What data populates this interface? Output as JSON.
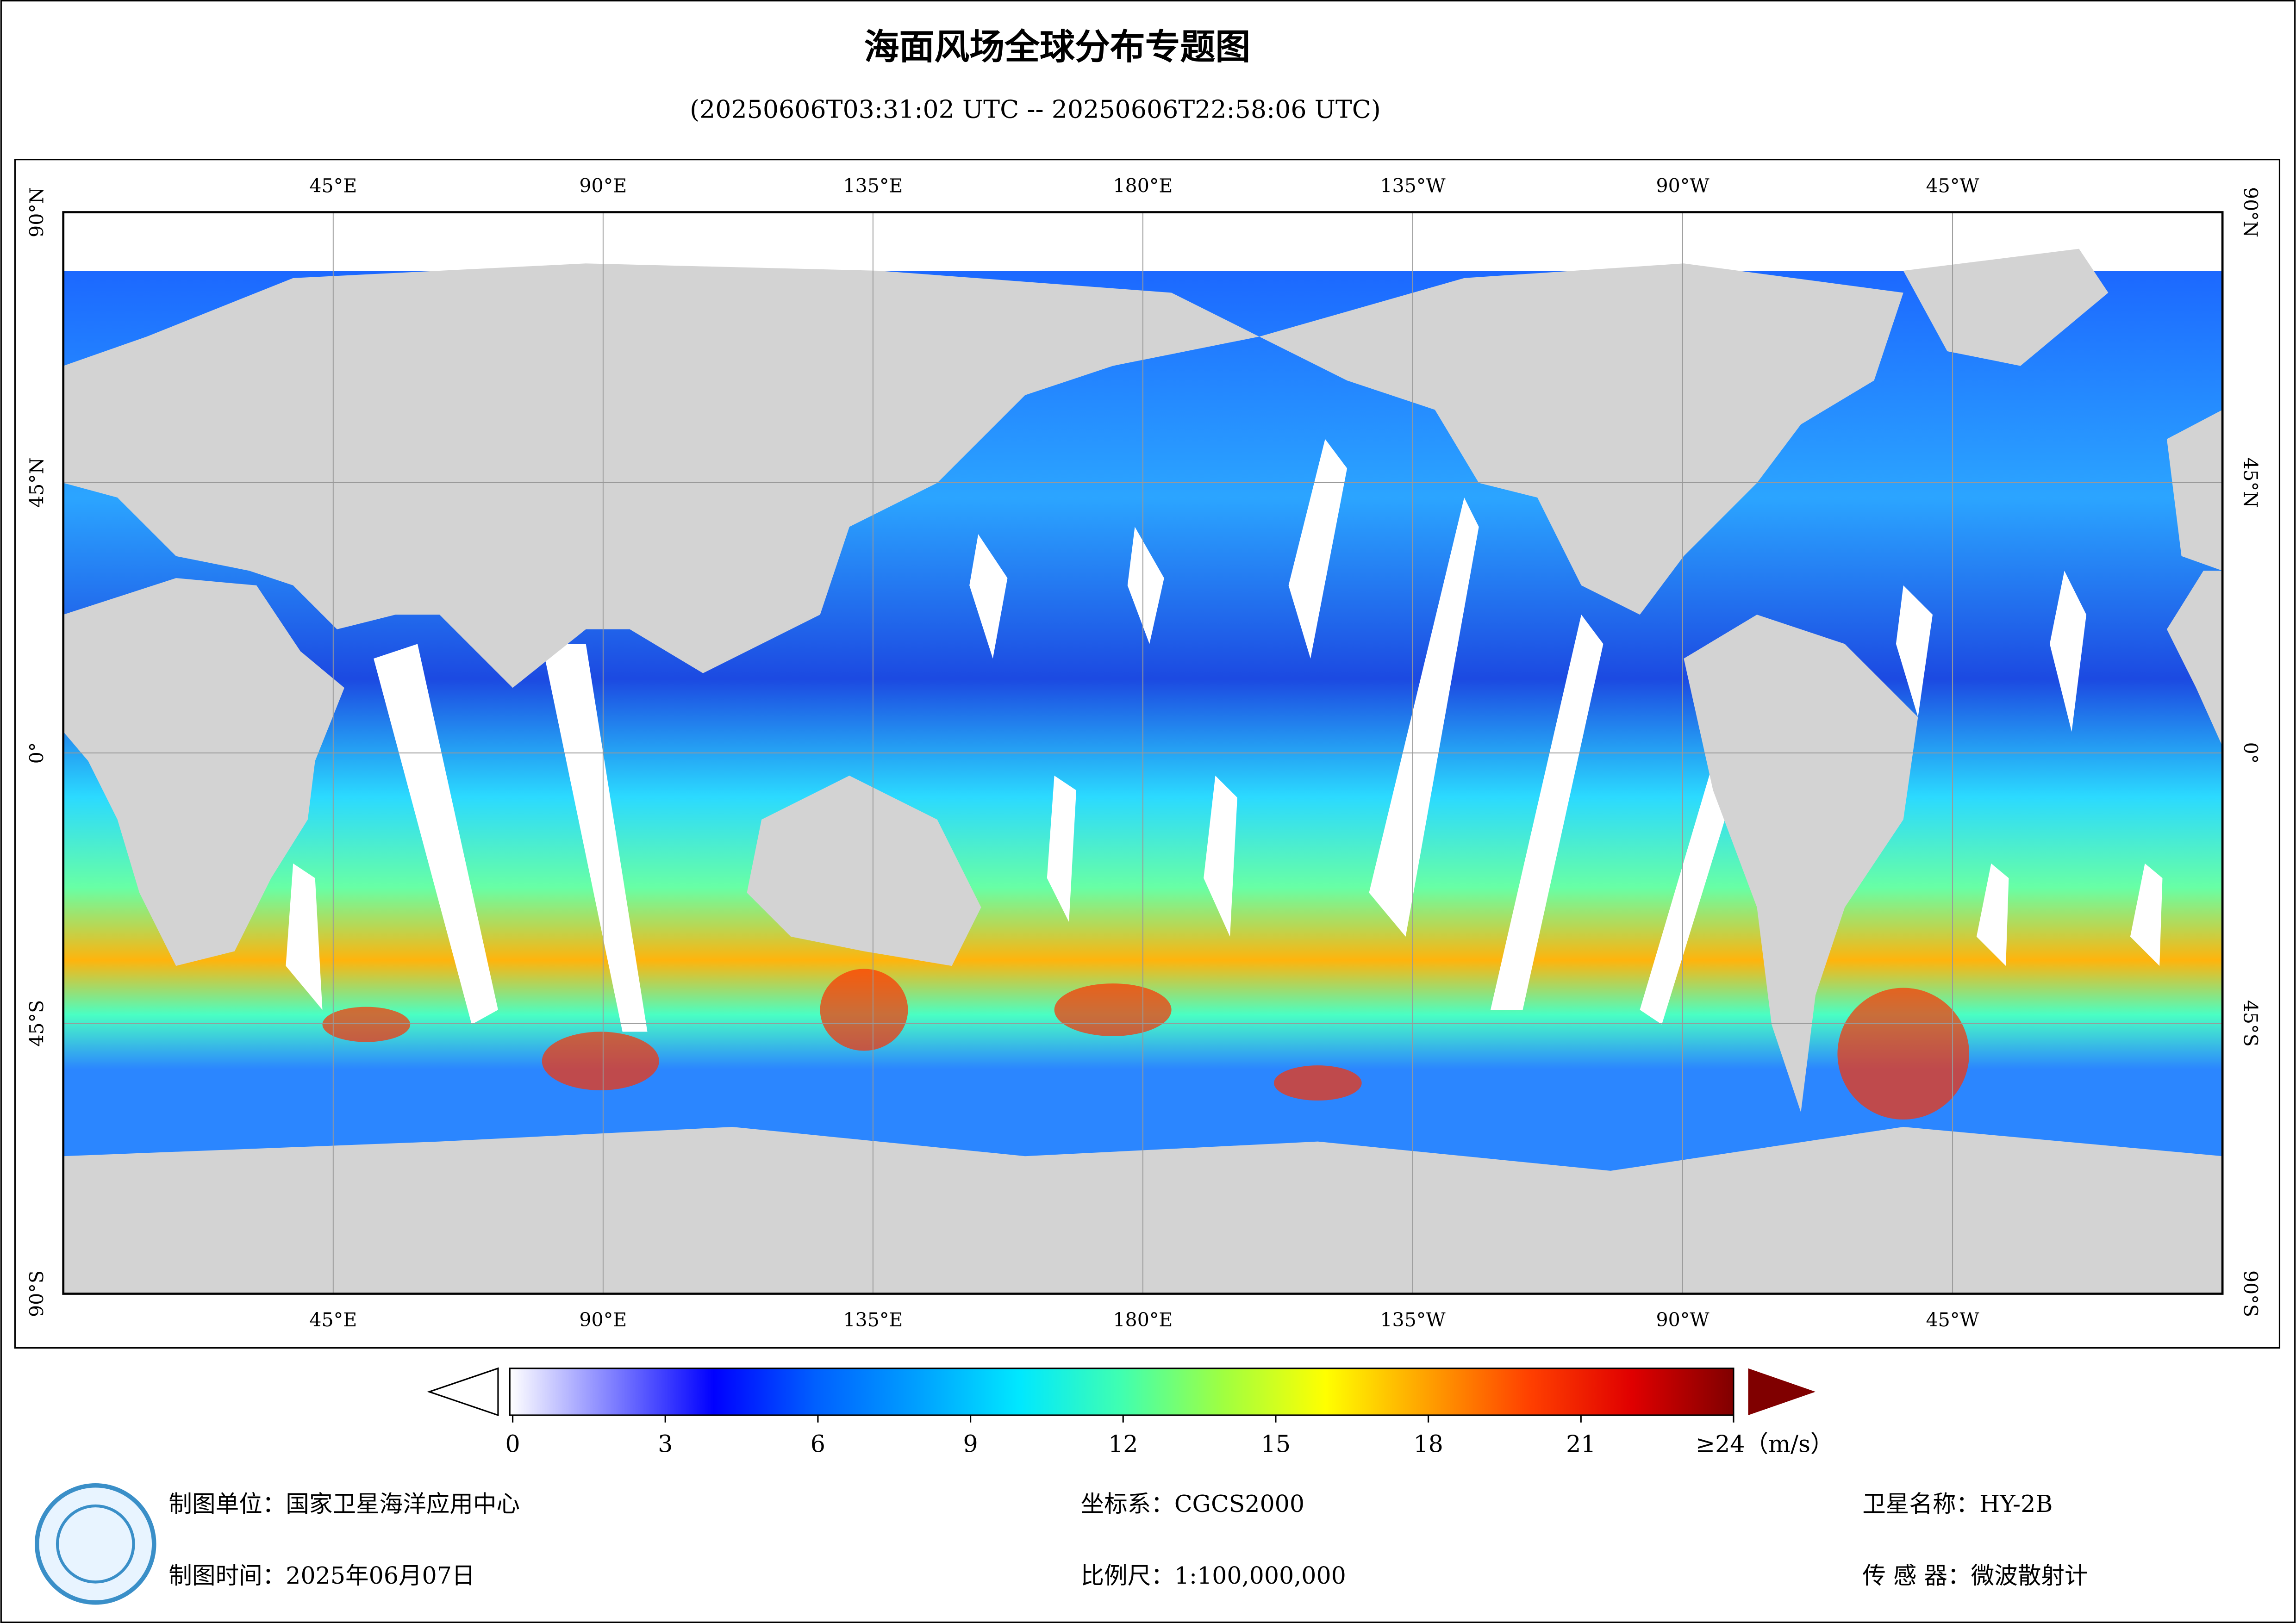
{
  "title": "海面风场全球分布专题图",
  "subtitle": "(20250606T03:31:02 UTC -- 20250606T22:58:06 UTC)",
  "map": {
    "xlim": [
      0,
      360
    ],
    "ylim": [
      -90,
      90
    ],
    "xticks": [
      {
        "value": 45,
        "label": "45°E"
      },
      {
        "value": 90,
        "label": "90°E"
      },
      {
        "value": 135,
        "label": "135°E"
      },
      {
        "value": 180,
        "label": "180°E"
      },
      {
        "value": -135,
        "label": "135°W"
      },
      {
        "value": -90,
        "label": "90°W"
      },
      {
        "value": -45,
        "label": "45°W"
      }
    ],
    "yticks": [
      {
        "value": 90,
        "label": "90°N"
      },
      {
        "value": 45,
        "label": "45°N"
      },
      {
        "value": 0,
        "label": "0°"
      },
      {
        "value": -45,
        "label": "45°S"
      },
      {
        "value": -90,
        "label": "90°S"
      }
    ],
    "grid": true
  },
  "colorbar": {
    "lim": [
      0,
      24
    ],
    "ticks": [
      0,
      3,
      6,
      9,
      12,
      15,
      18,
      21,
      {
        "value": 24,
        "label": "≥24（m/s）"
      }
    ],
    "colors": [
      "#ffffff",
      "#8080ff",
      "#0000ff",
      "#0060ff",
      "#00a0ff",
      "#00e8ff",
      "#40ffb0",
      "#a0ff40",
      "#ffff00",
      "#ffa000",
      "#ff4000",
      "#e00000",
      "#800000"
    ]
  },
  "footer": {
    "unit": "制图单位：国家卫星海洋应用中心",
    "crs": "坐标系：CGCS2000",
    "satellite": "卫星名称：HY-2B",
    "date": "制图时间：2025年06月07日",
    "scale": "比例尺：1:100,000,000",
    "sensor": "传 感 器：微波散射计"
  }
}
